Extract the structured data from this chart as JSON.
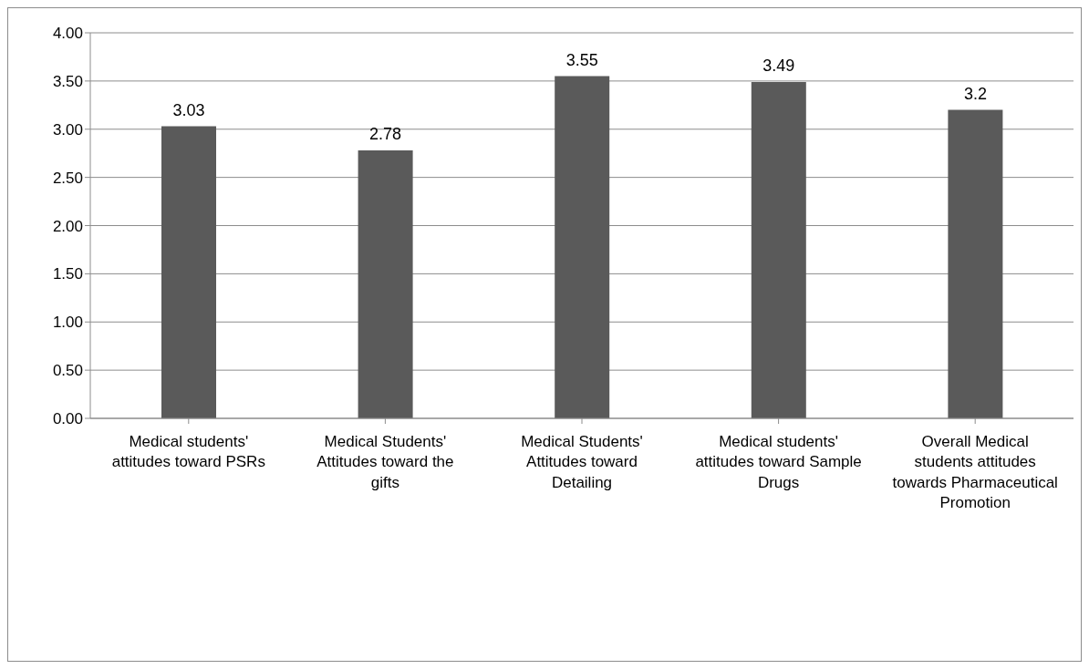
{
  "chart_data": {
    "type": "bar",
    "categories": [
      "Medical students' attitudes toward PSRs",
      "Medical Students' Attitudes toward the gifts",
      "Medical Students' Attitudes toward Detailing",
      "Medical students' attitudes toward Sample Drugs",
      "Overall Medical students attitudes towards Pharmaceutical Promotion"
    ],
    "values": [
      3.03,
      2.78,
      3.55,
      3.49,
      3.2
    ],
    "color": "#5a5a5a",
    "ylim": [
      0,
      4
    ],
    "yticks": [
      {
        "value": 0,
        "label": "0.00"
      },
      {
        "value": 0.5,
        "label": "0.50"
      },
      {
        "value": 1,
        "label": "1.00"
      },
      {
        "value": 1.5,
        "label": "1.50"
      },
      {
        "value": 2,
        "label": "2.00"
      },
      {
        "value": 2.5,
        "label": "2.50"
      },
      {
        "value": 3,
        "label": "3.00"
      },
      {
        "value": 3.5,
        "label": "3.50"
      },
      {
        "value": 4,
        "label": "4.00"
      }
    ],
    "grid": "y",
    "data_labels": true
  }
}
